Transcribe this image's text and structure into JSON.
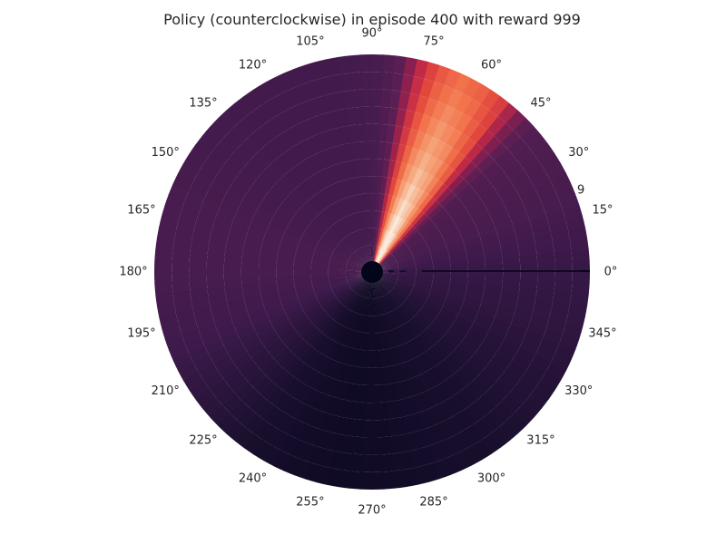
{
  "chart_data": {
    "type": "heatmap",
    "projection": "polar",
    "title": "Policy (counterclockwise) in episode 400 with reward 999",
    "theta_direction": "counterclockwise",
    "theta_ticks_deg": [
      0,
      15,
      30,
      45,
      60,
      75,
      90,
      105,
      120,
      135,
      150,
      165,
      180,
      195,
      210,
      225,
      240,
      255,
      270,
      285,
      300,
      315,
      330,
      345
    ],
    "theta_tick_labels": [
      "0°",
      "15°",
      "30°",
      "45°",
      "60°",
      "75°",
      "90°",
      "105°",
      "120°",
      "135°",
      "150°",
      "165°",
      "180°",
      "195°",
      "210°",
      "225°",
      "240°",
      "255°",
      "270°",
      "285°",
      "300°",
      "315°",
      "330°",
      "345°"
    ],
    "partial_radial_label": "9",
    "colormap": "rocket",
    "colormap_stops": [
      "#03051a",
      "#1a0f2e",
      "#3d1a4b",
      "#5c1f53",
      "#8a1f4f",
      "#c12a47",
      "#e3483d",
      "#f2744c",
      "#f6a97f",
      "#faebdd"
    ],
    "intensity_profile": [
      {
        "theta": 0,
        "value": 0.2
      },
      {
        "theta": 20,
        "value": 0.26
      },
      {
        "theta": 35,
        "value": 0.28
      },
      {
        "theta": 42,
        "value": 0.3
      },
      {
        "theta": 48,
        "value": 0.5
      },
      {
        "theta": 52,
        "value": 0.75
      },
      {
        "theta": 58,
        "value": 0.9
      },
      {
        "theta": 65,
        "value": 0.97
      },
      {
        "theta": 72,
        "value": 0.85
      },
      {
        "theta": 78,
        "value": 0.6
      },
      {
        "theta": 82,
        "value": 0.35
      },
      {
        "theta": 87,
        "value": 0.26
      },
      {
        "theta": 100,
        "value": 0.24
      },
      {
        "theta": 130,
        "value": 0.24
      },
      {
        "theta": 160,
        "value": 0.26
      },
      {
        "theta": 180,
        "value": 0.26
      },
      {
        "theta": 200,
        "value": 0.23
      },
      {
        "theta": 220,
        "value": 0.16
      },
      {
        "theta": 240,
        "value": 0.09
      },
      {
        "theta": 260,
        "value": 0.06
      },
      {
        "theta": 275,
        "value": 0.07
      },
      {
        "theta": 300,
        "value": 0.1
      },
      {
        "theta": 330,
        "value": 0.15
      },
      {
        "theta": 345,
        "value": 0.18
      },
      {
        "theta": 360,
        "value": 0.2
      }
    ]
  }
}
